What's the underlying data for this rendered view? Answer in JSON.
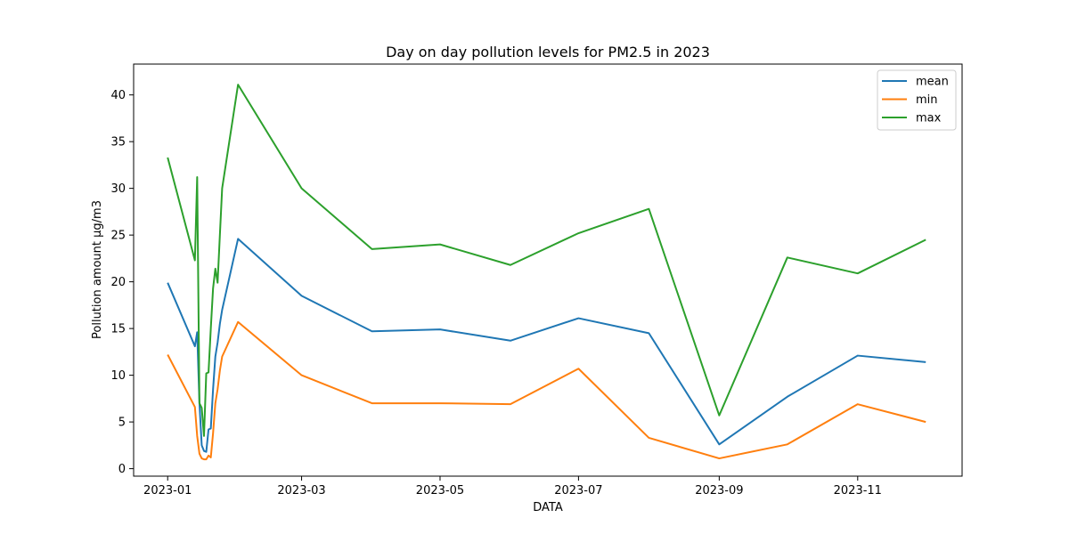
{
  "chart_data": {
    "type": "line",
    "title": "Day on day pollution levels for PM2.5 in 2023",
    "xlabel": "DATA",
    "ylabel": "Pollution amount µg/m3",
    "ylim": [
      -0.8,
      43.3
    ],
    "yticks": [
      0,
      5,
      10,
      15,
      20,
      25,
      30,
      35,
      40
    ],
    "xlim": [
      "2022-12-17",
      "2023-12-17"
    ],
    "xticks": [
      {
        "date": "2023-01-01",
        "label": "2023-01"
      },
      {
        "date": "2023-03-01",
        "label": "2023-03"
      },
      {
        "date": "2023-05-01",
        "label": "2023-05"
      },
      {
        "date": "2023-07-01",
        "label": "2023-07"
      },
      {
        "date": "2023-09-01",
        "label": "2023-09"
      },
      {
        "date": "2023-11-01",
        "label": "2023-11"
      }
    ],
    "grid": false,
    "legend": "top-right",
    "x": [
      "2023-01-01",
      "2023-01-13",
      "2023-01-14",
      "2023-01-15",
      "2023-01-16",
      "2023-01-17",
      "2023-01-18",
      "2023-01-19",
      "2023-01-20",
      "2023-01-21",
      "2023-01-22",
      "2023-01-23",
      "2023-01-24",
      "2023-01-25",
      "2023-02-01",
      "2023-03-01",
      "2023-04-01",
      "2023-05-01",
      "2023-06-01",
      "2023-07-01",
      "2023-08-01",
      "2023-09-01",
      "2023-10-01",
      "2023-11-01",
      "2023-12-01"
    ],
    "series": [
      {
        "name": "mean",
        "color": "#1f77b4",
        "values": [
          19.9,
          13.1,
          14.6,
          7.0,
          2.5,
          1.9,
          1.8,
          4.2,
          4.3,
          8.5,
          12.0,
          13.5,
          15.5,
          17.0,
          24.6,
          18.5,
          14.7,
          14.9,
          13.7,
          16.1,
          14.5,
          2.6,
          7.7,
          12.1,
          11.4
        ]
      },
      {
        "name": "min",
        "color": "#ff7f0e",
        "values": [
          12.2,
          6.6,
          3.5,
          1.6,
          1.1,
          1.0,
          1.0,
          1.4,
          1.2,
          3.8,
          7.0,
          8.5,
          10.5,
          12.0,
          15.7,
          10.0,
          7.0,
          7.0,
          6.9,
          10.7,
          3.3,
          1.1,
          2.6,
          6.9,
          5.0
        ]
      },
      {
        "name": "max",
        "color": "#2ca02c",
        "values": [
          33.3,
          22.3,
          31.2,
          7.0,
          6.5,
          3.5,
          10.2,
          10.3,
          15.0,
          19.3,
          21.4,
          19.9,
          25.0,
          30.0,
          41.1,
          30.0,
          23.5,
          24.0,
          21.8,
          25.2,
          27.8,
          5.7,
          22.6,
          20.9,
          24.5
        ]
      }
    ]
  }
}
